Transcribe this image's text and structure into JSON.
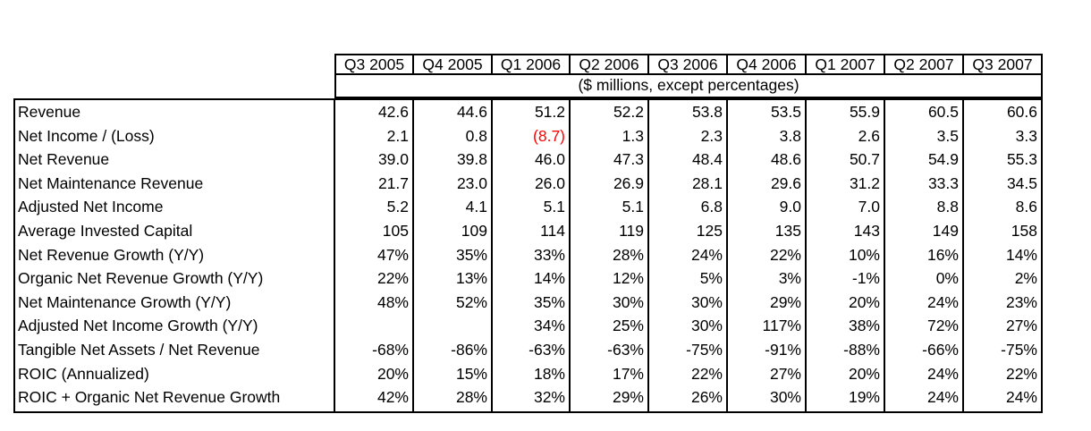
{
  "table": {
    "columns": [
      "Q3 2005",
      "Q4 2005",
      "Q1 2006",
      "Q2 2006",
      "Q3 2006",
      "Q4 2006",
      "Q1 2007",
      "Q2 2007",
      "Q3 2007"
    ],
    "units_note": "($ millions, except percentages)",
    "rows": [
      {
        "label": "Revenue",
        "values": [
          "42.6",
          "44.6",
          "51.2",
          "52.2",
          "53.8",
          "53.5",
          "55.9",
          "60.5",
          "60.6"
        ]
      },
      {
        "label": "Net Income / (Loss)",
        "values": [
          "2.1",
          "0.8",
          "(8.7)",
          "1.3",
          "2.3",
          "3.8",
          "2.6",
          "3.5",
          "3.3"
        ]
      },
      {
        "label": "Net Revenue",
        "values": [
          "39.0",
          "39.8",
          "46.0",
          "47.3",
          "48.4",
          "48.6",
          "50.7",
          "54.9",
          "55.3"
        ]
      },
      {
        "label": "Net Maintenance Revenue",
        "values": [
          "21.7",
          "23.0",
          "26.0",
          "26.9",
          "28.1",
          "29.6",
          "31.2",
          "33.3",
          "34.5"
        ]
      },
      {
        "label": "Adjusted Net Income",
        "values": [
          "5.2",
          "4.1",
          "5.1",
          "5.1",
          "6.8",
          "9.0",
          "7.0",
          "8.8",
          "8.6"
        ]
      },
      {
        "label": "Average Invested Capital",
        "values": [
          "105",
          "109",
          "114",
          "119",
          "125",
          "135",
          "143",
          "149",
          "158"
        ]
      },
      {
        "label": "Net Revenue Growth (Y/Y)",
        "values": [
          "47%",
          "35%",
          "33%",
          "28%",
          "24%",
          "22%",
          "10%",
          "16%",
          "14%"
        ]
      },
      {
        "label": "Organic Net Revenue Growth (Y/Y)",
        "values": [
          "22%",
          "13%",
          "14%",
          "12%",
          "5%",
          "3%",
          "-1%",
          "0%",
          "2%"
        ]
      },
      {
        "label": "Net Maintenance Growth (Y/Y)",
        "values": [
          "48%",
          "52%",
          "35%",
          "30%",
          "30%",
          "29%",
          "20%",
          "24%",
          "23%"
        ]
      },
      {
        "label": "Adjusted Net Income Growth (Y/Y)",
        "values": [
          "",
          "",
          "34%",
          "25%",
          "30%",
          "117%",
          "38%",
          "72%",
          "27%"
        ]
      },
      {
        "label": "Tangible Net Assets / Net Revenue",
        "values": [
          "-68%",
          "-86%",
          "-63%",
          "-63%",
          "-75%",
          "-91%",
          "-88%",
          "-66%",
          "-75%"
        ]
      },
      {
        "label": "ROIC (Annualized)",
        "values": [
          "20%",
          "15%",
          "18%",
          "17%",
          "22%",
          "27%",
          "20%",
          "24%",
          "22%"
        ]
      },
      {
        "label": "ROIC + Organic Net Revenue Growth",
        "values": [
          "42%",
          "28%",
          "32%",
          "29%",
          "26%",
          "30%",
          "19%",
          "24%",
          "24%"
        ]
      }
    ],
    "negative_color": "#ff0000",
    "red_cells": [
      [
        1,
        2
      ]
    ]
  }
}
